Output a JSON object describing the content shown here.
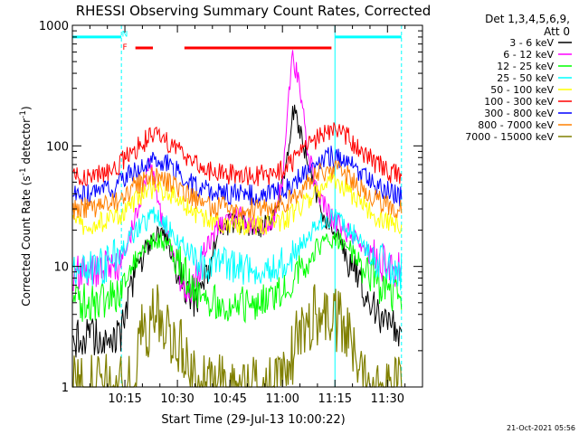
{
  "chart_data": {
    "type": "line",
    "title": "RHESSI Observing Summary Count Rates, Corrected",
    "xlabel": "Start Time (29-Jul-13 10:00:22)",
    "ylabel_parts": [
      "Corrected Count Rate (s",
      "-1",
      " detector",
      "-1",
      ")"
    ],
    "y_scale": "log",
    "ylim": [
      1,
      1000
    ],
    "xlim_minutes": [
      0,
      100
    ],
    "x_ticks": [
      {
        "label": "10:15",
        "minute": 15
      },
      {
        "label": "10:30",
        "minute": 30
      },
      {
        "label": "10:45",
        "minute": 45
      },
      {
        "label": "11:00",
        "minute": 60
      },
      {
        "label": "11:15",
        "minute": 75
      },
      {
        "label": "11:30",
        "minute": 90
      }
    ],
    "y_ticks": [
      {
        "label": "1",
        "value": 1
      },
      {
        "label": "10",
        "value": 10
      },
      {
        "label": "100",
        "value": 100
      },
      {
        "label": "1000",
        "value": 1000
      }
    ],
    "legend_header": [
      "Det 1,3,4,5,6,9,",
      "Att 0"
    ],
    "legend_position": "right",
    "series": [
      {
        "name": "3 - 6 keV",
        "color": "#000000",
        "points": [
          [
            0,
            2.5
          ],
          [
            14,
            2.8
          ],
          [
            18,
            9
          ],
          [
            22,
            16
          ],
          [
            26,
            20
          ],
          [
            29,
            10
          ],
          [
            33,
            6
          ],
          [
            36,
            5
          ],
          [
            38,
            9
          ],
          [
            42,
            20
          ],
          [
            47,
            24
          ],
          [
            52,
            20
          ],
          [
            57,
            24
          ],
          [
            61,
            60
          ],
          [
            63,
            200
          ],
          [
            65,
            140
          ],
          [
            68,
            60
          ],
          [
            71,
            30
          ],
          [
            74,
            20
          ],
          [
            77,
            15
          ],
          [
            80,
            10
          ],
          [
            84,
            6
          ],
          [
            88,
            4
          ],
          [
            92,
            3
          ],
          [
            94,
            2.5
          ]
        ]
      },
      {
        "name": "6 - 12 keV",
        "color": "#ff00ff",
        "points": [
          [
            0,
            9
          ],
          [
            13,
            10
          ],
          [
            17,
            20
          ],
          [
            20,
            40
          ],
          [
            22,
            80
          ],
          [
            24,
            40
          ],
          [
            26,
            22
          ],
          [
            29,
            12
          ],
          [
            31,
            7
          ],
          [
            33,
            6
          ],
          [
            35,
            8
          ],
          [
            38,
            15
          ],
          [
            42,
            22
          ],
          [
            48,
            26
          ],
          [
            53,
            20
          ],
          [
            57,
            24
          ],
          [
            60,
            50
          ],
          [
            62,
            300
          ],
          [
            63,
            550
          ],
          [
            65,
            300
          ],
          [
            67,
            100
          ],
          [
            70,
            40
          ],
          [
            74,
            25
          ],
          [
            78,
            20
          ],
          [
            82,
            15
          ],
          [
            86,
            12
          ],
          [
            90,
            10
          ],
          [
            94,
            9
          ]
        ]
      },
      {
        "name": "12 - 25 keV",
        "color": "#00ff00",
        "points": [
          [
            0,
            5
          ],
          [
            8,
            5
          ],
          [
            13,
            6
          ],
          [
            17,
            10
          ],
          [
            21,
            15
          ],
          [
            24,
            17
          ],
          [
            27,
            15
          ],
          [
            31,
            10
          ],
          [
            35,
            6
          ],
          [
            40,
            5
          ],
          [
            50,
            5
          ],
          [
            58,
            5.5
          ],
          [
            62,
            7
          ],
          [
            66,
            11
          ],
          [
            71,
            15
          ],
          [
            74,
            17
          ],
          [
            78,
            15
          ],
          [
            82,
            11
          ],
          [
            86,
            8
          ],
          [
            90,
            6
          ],
          [
            94,
            5
          ]
        ]
      },
      {
        "name": "25 - 50 keV",
        "color": "#00ffff",
        "points": [
          [
            0,
            9
          ],
          [
            8,
            10
          ],
          [
            13,
            12
          ],
          [
            17,
            18
          ],
          [
            21,
            24
          ],
          [
            24,
            26
          ],
          [
            27,
            22
          ],
          [
            31,
            16
          ],
          [
            35,
            12
          ],
          [
            40,
            10
          ],
          [
            50,
            10
          ],
          [
            58,
            10.5
          ],
          [
            62,
            11
          ],
          [
            66,
            16
          ],
          [
            71,
            24
          ],
          [
            74,
            26
          ],
          [
            78,
            22
          ],
          [
            82,
            16
          ],
          [
            86,
            12
          ],
          [
            90,
            10
          ],
          [
            94,
            9
          ]
        ]
      },
      {
        "name": "50 - 100 keV",
        "color": "#ffff00",
        "points": [
          [
            0,
            22
          ],
          [
            8,
            23
          ],
          [
            13,
            26
          ],
          [
            17,
            33
          ],
          [
            21,
            42
          ],
          [
            24,
            45
          ],
          [
            27,
            42
          ],
          [
            31,
            34
          ],
          [
            35,
            27
          ],
          [
            40,
            23
          ],
          [
            50,
            22
          ],
          [
            58,
            23
          ],
          [
            62,
            26
          ],
          [
            66,
            34
          ],
          [
            71,
            45
          ],
          [
            74,
            50
          ],
          [
            78,
            45
          ],
          [
            82,
            35
          ],
          [
            86,
            27
          ],
          [
            90,
            23
          ],
          [
            94,
            22
          ]
        ]
      },
      {
        "name": "100 - 300 keV",
        "color": "#ff0000",
        "points": [
          [
            0,
            55
          ],
          [
            8,
            58
          ],
          [
            13,
            68
          ],
          [
            17,
            88
          ],
          [
            21,
            112
          ],
          [
            24,
            120
          ],
          [
            27,
            110
          ],
          [
            31,
            90
          ],
          [
            35,
            72
          ],
          [
            40,
            60
          ],
          [
            50,
            56
          ],
          [
            58,
            58
          ],
          [
            62,
            68
          ],
          [
            66,
            90
          ],
          [
            71,
            125
          ],
          [
            74,
            135
          ],
          [
            78,
            122
          ],
          [
            82,
            96
          ],
          [
            86,
            74
          ],
          [
            90,
            62
          ],
          [
            94,
            55
          ]
        ]
      },
      {
        "name": "300 - 800 keV",
        "color": "#0000ff",
        "points": [
          [
            0,
            38
          ],
          [
            8,
            40
          ],
          [
            13,
            47
          ],
          [
            17,
            60
          ],
          [
            21,
            72
          ],
          [
            24,
            75
          ],
          [
            27,
            70
          ],
          [
            31,
            58
          ],
          [
            35,
            47
          ],
          [
            40,
            41
          ],
          [
            50,
            39
          ],
          [
            58,
            40
          ],
          [
            62,
            46
          ],
          [
            66,
            60
          ],
          [
            71,
            78
          ],
          [
            74,
            82
          ],
          [
            78,
            75
          ],
          [
            82,
            60
          ],
          [
            86,
            48
          ],
          [
            90,
            42
          ],
          [
            94,
            38
          ]
        ]
      },
      {
        "name": "800 - 7000 keV",
        "color": "#ff8000",
        "points": [
          [
            0,
            30
          ],
          [
            8,
            31
          ],
          [
            13,
            35
          ],
          [
            17,
            44
          ],
          [
            21,
            53
          ],
          [
            24,
            55
          ],
          [
            27,
            52
          ],
          [
            31,
            44
          ],
          [
            35,
            36
          ],
          [
            40,
            31
          ],
          [
            50,
            30
          ],
          [
            58,
            31
          ],
          [
            62,
            35
          ],
          [
            66,
            45
          ],
          [
            71,
            60
          ],
          [
            74,
            64
          ],
          [
            78,
            58
          ],
          [
            82,
            46
          ],
          [
            86,
            37
          ],
          [
            90,
            32
          ],
          [
            94,
            30
          ]
        ]
      },
      {
        "name": "7000 - 15000 keV",
        "color": "#808000",
        "points": [
          [
            0,
            1
          ],
          [
            18,
            1
          ],
          [
            19,
            2.5
          ],
          [
            21,
            3
          ],
          [
            23,
            4
          ],
          [
            26,
            3.5
          ],
          [
            28,
            3
          ],
          [
            31,
            2
          ],
          [
            33,
            1.5
          ],
          [
            36,
            1
          ],
          [
            60,
            1
          ],
          [
            62,
            1.5
          ],
          [
            64,
            2.5
          ],
          [
            66,
            3
          ],
          [
            69,
            4
          ],
          [
            72,
            4
          ],
          [
            75,
            3.5
          ],
          [
            78,
            3
          ],
          [
            80,
            2
          ],
          [
            83,
            1.5
          ],
          [
            86,
            1
          ],
          [
            94,
            1
          ]
        ]
      }
    ],
    "attenuator_bars": {
      "color": "#00ffff",
      "segments_minutes": [
        [
          0,
          14
        ],
        [
          75,
          94
        ]
      ],
      "value": 800,
      "labels": [
        {
          "text": "N",
          "minute": 15,
          "value": 850
        },
        {
          "text": "F",
          "minute": 15,
          "value": 660
        }
      ]
    },
    "flare_bars": {
      "color": "#ff0000",
      "segments_minutes": [
        [
          18,
          23
        ],
        [
          32,
          74
        ]
      ],
      "value": 650
    },
    "vertical_markers_minutes": [
      {
        "minute": 0,
        "style": "solid"
      },
      {
        "minute": 14,
        "style": "dashed"
      },
      {
        "minute": 75,
        "style": "solid"
      },
      {
        "minute": 94,
        "style": "dashed"
      }
    ],
    "timestamp": "21-Oct-2021 05:56"
  }
}
